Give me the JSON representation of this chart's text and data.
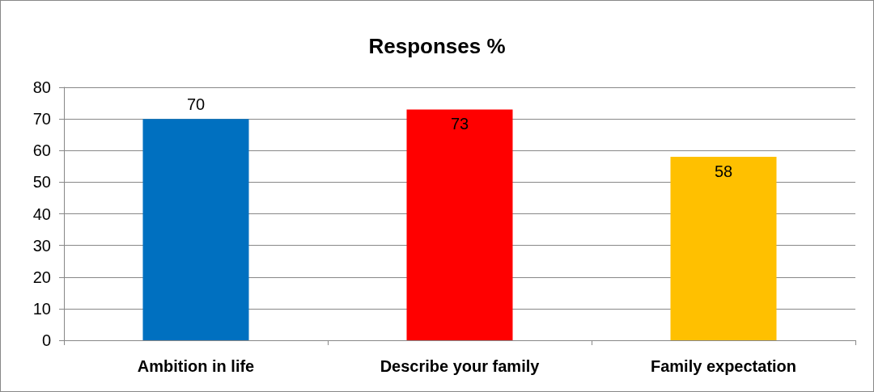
{
  "chart_data": {
    "type": "bar",
    "title": "Responses %",
    "categories": [
      "Ambition in life",
      "Describe your family",
      "Family expectation"
    ],
    "values": [
      70,
      73,
      58
    ],
    "colors": [
      "#0070c0",
      "#ff0000",
      "#ffc000"
    ],
    "ylim": [
      0,
      80
    ],
    "yticks": [
      0,
      10,
      20,
      30,
      40,
      50,
      60,
      70,
      80
    ],
    "grid": "y",
    "data_labels": true
  }
}
